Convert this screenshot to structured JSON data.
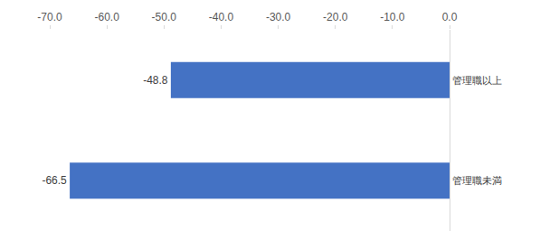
{
  "chart_data": {
    "type": "bar",
    "orientation": "horizontal",
    "categories": [
      "管理職以上",
      "管理職未満"
    ],
    "values": [
      -48.8,
      -66.5
    ],
    "color": "#4472c4",
    "xlim": [
      -70,
      0
    ],
    "xticks": [
      {
        "value": -70,
        "label": "-70.0"
      },
      {
        "value": -60,
        "label": "-60.0"
      },
      {
        "value": -50,
        "label": "-50.0"
      },
      {
        "value": -40,
        "label": "-40.0"
      },
      {
        "value": -30,
        "label": "-30.0"
      },
      {
        "value": -20,
        "label": "-20.0"
      },
      {
        "value": -10,
        "label": "-10.0"
      },
      {
        "value": 0,
        "label": "0.0"
      }
    ],
    "grid": false,
    "data_labels": true
  }
}
